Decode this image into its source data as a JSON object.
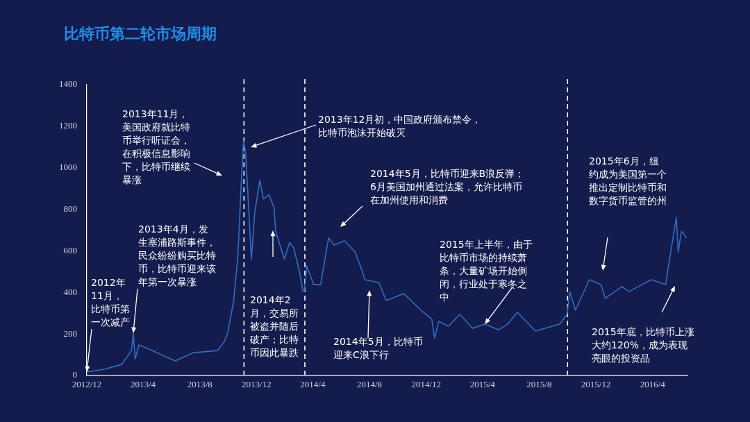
{
  "chart_data": {
    "type": "line",
    "title": "比特币第二轮市场周期",
    "x": [
      "2012-12-01",
      "2013-01-08",
      "2013-02-14",
      "2013-03-07",
      "2013-03-11",
      "2013-03-15",
      "2013-03-23",
      "2013-04-21",
      "2013-06-09",
      "2013-07-19",
      "2013-09-08",
      "2013-09-22",
      "2013-09-30",
      "2013-10-13",
      "2013-10-22",
      "2013-10-29",
      "2013-11-03",
      "2013-11-08",
      "2013-11-12",
      "2013-11-20",
      "2013-11-27",
      "2013-12-08",
      "2013-12-16",
      "2013-12-28",
      "2014-01-08",
      "2014-01-11",
      "2014-01-30",
      "2014-02-10",
      "2014-02-19",
      "2014-03-04",
      "2014-03-11",
      "2014-03-14",
      "2014-03-19",
      "2014-04-03",
      "2014-04-18",
      "2014-05-05",
      "2014-05-17",
      "2014-06-08",
      "2014-07-01",
      "2014-07-16",
      "2014-07-22",
      "2014-08-21",
      "2014-09-06",
      "2014-10-14",
      "2014-11-20",
      "2014-12-13",
      "2014-12-19",
      "2014-12-28",
      "2015-01-18",
      "2015-02-11",
      "2015-03-11",
      "2015-04-06",
      "2015-05-06",
      "2015-05-25",
      "2015-06-15",
      "2015-07-24",
      "2015-09-14",
      "2015-09-30",
      "2015-10-06",
      "2015-10-18",
      "2015-11-17",
      "2015-12-12",
      "2015-12-21",
      "2016-01-26",
      "2016-02-10",
      "2016-03-29",
      "2016-04-29",
      "2016-05-09",
      "2016-05-22",
      "2016-05-26",
      "2016-06-02",
      "2016-06-13"
    ],
    "series": [
      {
        "color": "#2f6fc0",
        "values": [
          17,
          30,
          53,
          120,
          204,
          80,
          147,
          120,
          70,
          110,
          120,
          160,
          204,
          360,
          580,
          915,
          1130,
          1063,
          895,
          560,
          780,
          940,
          850,
          870,
          805,
          695,
          560,
          640,
          615,
          495,
          405,
          405,
          528,
          438,
          438,
          662,
          628,
          648,
          595,
          505,
          461,
          448,
          361,
          394,
          314,
          271,
          180,
          261,
          237,
          294,
          227,
          247,
          220,
          247,
          304,
          214,
          247,
          294,
          404,
          314,
          461,
          438,
          371,
          428,
          404,
          461,
          438,
          581,
          762,
          595,
          695,
          662
        ]
      }
    ],
    "xlim": [
      "2012-12-01",
      "2016-06-15"
    ],
    "xticks": [
      {
        "value": "2012-12",
        "label": "2012/12"
      },
      {
        "value": "2013-04",
        "label": "2013/4"
      },
      {
        "value": "2013-08",
        "label": "2013/8"
      },
      {
        "value": "2013-12",
        "label": "2013/12"
      },
      {
        "value": "2014-04",
        "label": "2014/4"
      },
      {
        "value": "2014-08",
        "label": "2014/8"
      },
      {
        "value": "2014-12",
        "label": "2014/12"
      },
      {
        "value": "2015-04",
        "label": "2015/4"
      },
      {
        "value": "2015-08",
        "label": "2015/8"
      },
      {
        "value": "2015-12",
        "label": "2015/12"
      },
      {
        "value": "2016-04",
        "label": "2016/4"
      }
    ],
    "ylim": [
      0,
      1400
    ],
    "yticks": [
      0,
      200,
      400,
      600,
      800,
      1000,
      1200,
      1400
    ],
    "grid": false,
    "legend": false,
    "marker": "none",
    "line_style": "solid",
    "ref_lines": [
      {
        "axis": "x",
        "value": "2013-11-04",
        "color": "#ffffff",
        "line_style": "dashed"
      },
      {
        "axis": "x",
        "value": "2014-03-15",
        "color": "#ffffff",
        "line_style": "dashed"
      },
      {
        "axis": "x",
        "value": "2015-10-01",
        "color": "#ffffff",
        "line_style": "dashed"
      }
    ],
    "annotations": [
      {
        "text": "2012年11月，比特币第一次减产",
        "x": "2012-12-01",
        "y": 17
      },
      {
        "text": "2013年4月，发生塞浦路斯事件，民众纷纷购买比特币，比特币迎来该年第一次暴涨",
        "x": "2013-03-11",
        "y": 204
      },
      "2013年11月，美国政府就比特币举行听证会，在积极信息影响下，比特币继续暴涨",
      "2013年12月初，中国政府颁布禁令，比特币泡沫开始破灭",
      "2014年2月，交易所被盗并随后破产；比特币因此暴跌",
      "2014年5月，比特币迎来B浪反弹；6月美国加州通过法案，允许比特币在加州使用和消费",
      "2014年5月，比特币迎来C浪下行",
      {
        "text": "2015年上半年，由于比特币市场的持续萧条，大量矿场开始倒闭，行业处于寒冬之中",
        "x": "2015-04-06",
        "y": 247
      },
      "2015年6月，纽约成为美国第一个推出定制比特币和数字货币监管的州",
      "2015年底，比特币上涨大约120%，成为表现亮眼的投资品"
    ]
  }
}
